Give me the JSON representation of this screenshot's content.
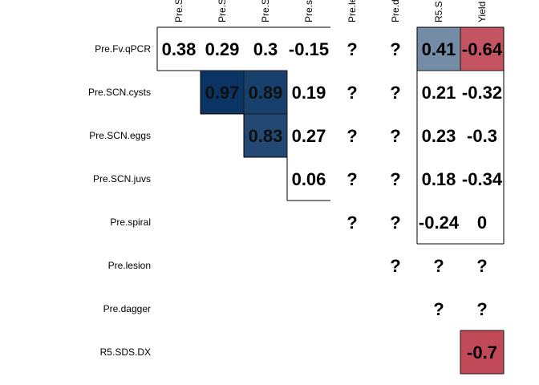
{
  "chart_data": {
    "type": "heatmap",
    "title": "",
    "rows": [
      "Pre.Fv.qPCR",
      "Pre.SCN.cysts",
      "Pre.SCN.eggs",
      "Pre.SCN.juvs",
      "Pre.spiral",
      "Pre.lesion",
      "Pre.dagger",
      "R5.SDS.DX"
    ],
    "columns": [
      "Pre.S",
      "Pre.S",
      "Pre.S",
      "Pre.s",
      "Pre.le",
      "Pre.d",
      "R5.S",
      "Yield"
    ],
    "cells": [
      [
        {
          "label": "0.38",
          "value": 0.38,
          "fill": false
        },
        {
          "label": "0.29",
          "value": 0.29,
          "fill": false
        },
        {
          "label": "0.3",
          "value": 0.3,
          "fill": false
        },
        {
          "label": "-0.15",
          "value": -0.15,
          "fill": false
        },
        {
          "label": "?",
          "value": null,
          "fill": false
        },
        {
          "label": "?",
          "value": null,
          "fill": false
        },
        {
          "label": "0.41",
          "value": 0.41,
          "fill": true
        },
        {
          "label": "-0.64",
          "value": -0.64,
          "fill": true
        }
      ],
      [
        null,
        {
          "label": "0.97",
          "value": 0.97,
          "fill": true
        },
        {
          "label": "0.89",
          "value": 0.89,
          "fill": true
        },
        {
          "label": "0.19",
          "value": 0.19,
          "fill": false
        },
        {
          "label": "?",
          "value": null,
          "fill": false
        },
        {
          "label": "?",
          "value": null,
          "fill": false
        },
        {
          "label": "0.21",
          "value": 0.21,
          "fill": false
        },
        {
          "label": "-0.32",
          "value": -0.32,
          "fill": false
        }
      ],
      [
        null,
        null,
        {
          "label": "0.83",
          "value": 0.83,
          "fill": true
        },
        {
          "label": "0.27",
          "value": 0.27,
          "fill": false
        },
        {
          "label": "?",
          "value": null,
          "fill": false
        },
        {
          "label": "?",
          "value": null,
          "fill": false
        },
        {
          "label": "0.23",
          "value": 0.23,
          "fill": false
        },
        {
          "label": "-0.3",
          "value": -0.3,
          "fill": false
        }
      ],
      [
        null,
        null,
        null,
        {
          "label": "0.06",
          "value": 0.06,
          "fill": false
        },
        {
          "label": "?",
          "value": null,
          "fill": false
        },
        {
          "label": "?",
          "value": null,
          "fill": false
        },
        {
          "label": "0.18",
          "value": 0.18,
          "fill": false
        },
        {
          "label": "-0.34",
          "value": -0.34,
          "fill": false
        }
      ],
      [
        null,
        null,
        null,
        null,
        {
          "label": "?",
          "value": null,
          "fill": false
        },
        {
          "label": "?",
          "value": null,
          "fill": false
        },
        {
          "label": "-0.24",
          "value": -0.24,
          "fill": false
        },
        {
          "label": "0",
          "value": 0,
          "fill": false
        }
      ],
      [
        null,
        null,
        null,
        null,
        null,
        {
          "label": "?",
          "value": null,
          "fill": false
        },
        {
          "label": "?",
          "value": null,
          "fill": false
        },
        {
          "label": "?",
          "value": null,
          "fill": false
        }
      ],
      [
        null,
        null,
        null,
        null,
        null,
        null,
        {
          "label": "?",
          "value": null,
          "fill": false
        },
        {
          "label": "?",
          "value": null,
          "fill": false
        }
      ],
      [
        null,
        null,
        null,
        null,
        null,
        null,
        null,
        {
          "label": "-0.7",
          "value": -0.7,
          "fill": true
        }
      ]
    ],
    "value_range": [
      -1,
      1
    ],
    "color_negative": "#B2182B",
    "color_positive": "#053061",
    "color_mid": "#F7F7F7",
    "grid": false,
    "legend": "none"
  }
}
